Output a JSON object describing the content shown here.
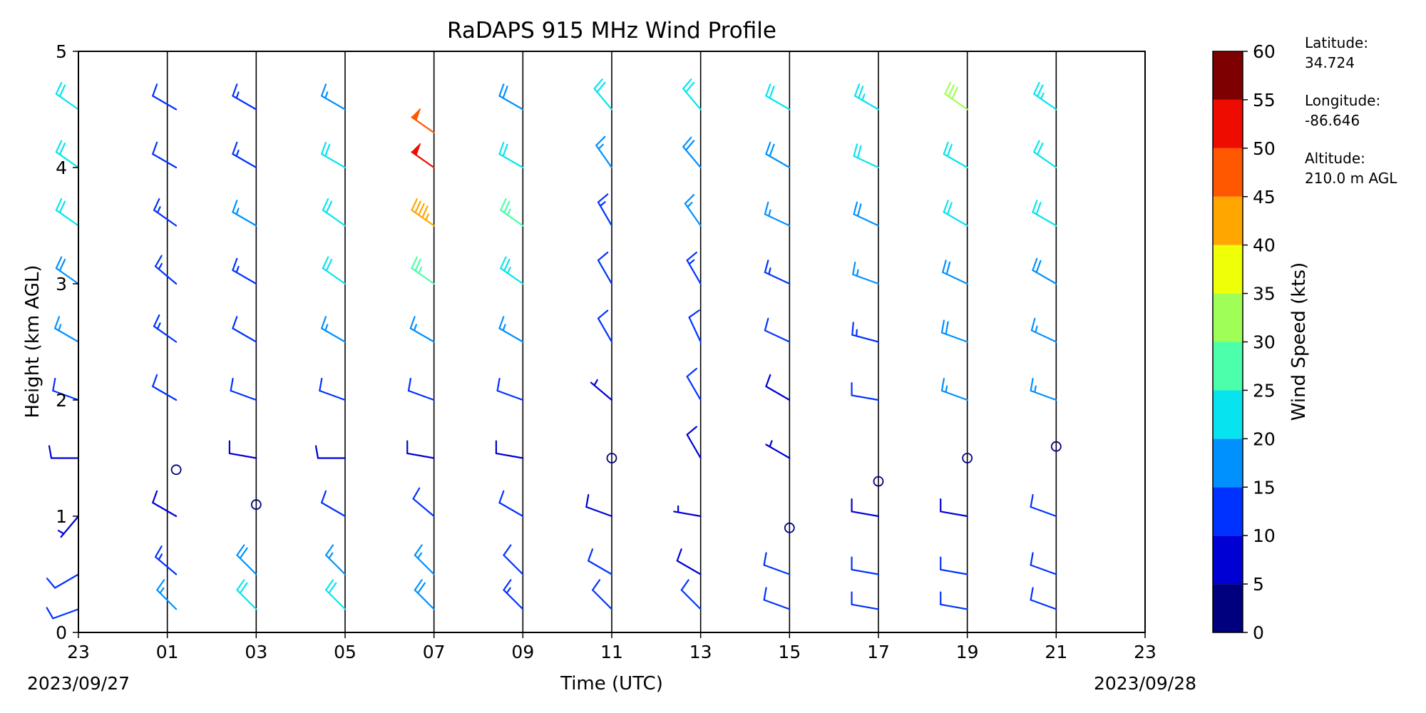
{
  "chart_data": {
    "type": "wind_barb_profile",
    "title": "RaDAPS 915 MHz Wind Profile",
    "xlabel": "Time (UTC)",
    "ylabel": "Height (km AGL)",
    "x_ticks": [
      "23",
      "01",
      "03",
      "05",
      "07",
      "09",
      "11",
      "13",
      "15",
      "17",
      "19",
      "21",
      "23"
    ],
    "x_range_hours": [
      0,
      24
    ],
    "y_ticks": [
      "0",
      "1",
      "2",
      "3",
      "4",
      "5"
    ],
    "ylim": [
      0,
      5
    ],
    "start_date_label": "2023/09/27",
    "end_date_label": "2023/09/28",
    "grid": "vertical lines every 2 hours",
    "colorbar": {
      "label": "Wind Speed (kts)",
      "ticks": [
        "0",
        "5",
        "10",
        "15",
        "20",
        "25",
        "30",
        "35",
        "40",
        "45",
        "50",
        "55",
        "60"
      ],
      "bins": [
        {
          "range": [
            0,
            5
          ],
          "color": "#00007f"
        },
        {
          "range": [
            5,
            10
          ],
          "color": "#0000d5"
        },
        {
          "range": [
            10,
            15
          ],
          "color": "#0032ff"
        },
        {
          "range": [
            15,
            20
          ],
          "color": "#0091ff"
        },
        {
          "range": [
            20,
            25
          ],
          "color": "#08e4ef"
        },
        {
          "range": [
            25,
            30
          ],
          "color": "#4cffaa"
        },
        {
          "range": [
            30,
            35
          ],
          "color": "#a0ff56"
        },
        {
          "range": [
            35,
            40
          ],
          "color": "#eeff08"
        },
        {
          "range": [
            40,
            45
          ],
          "color": "#ffa700"
        },
        {
          "range": [
            45,
            50
          ],
          "color": "#ff5800"
        },
        {
          "range": [
            50,
            55
          ],
          "color": "#ee0b00"
        },
        {
          "range": [
            55,
            60
          ],
          "color": "#7f0000"
        }
      ]
    },
    "site": {
      "latitude_label": "Latitude:",
      "latitude_value": "34.724",
      "longitude_label": "Longitude:",
      "longitude_value": "-86.646",
      "altitude_label": "Altitude:",
      "altitude_value": "210.0 m AGL"
    },
    "profiles": [
      {
        "time_h": 0.0,
        "levels": [
          {
            "h": 0.2,
            "spd": 12,
            "dir": 250
          },
          {
            "h": 0.5,
            "spd": 10,
            "dir": 240
          },
          {
            "h": 1.0,
            "spd": 6,
            "dir": 220
          },
          {
            "h": 1.5,
            "spd": 8,
            "dir": 270
          },
          {
            "h": 2.0,
            "spd": 10,
            "dir": 290
          },
          {
            "h": 2.5,
            "spd": 16,
            "dir": 300
          },
          {
            "h": 3.0,
            "spd": 19,
            "dir": 305
          },
          {
            "h": 3.5,
            "spd": 21,
            "dir": 305
          },
          {
            "h": 4.0,
            "spd": 22,
            "dir": 305
          },
          {
            "h": 4.5,
            "spd": 20,
            "dir": 305
          }
        ]
      },
      {
        "time_h": 2.2,
        "levels": [
          {
            "h": 0.2,
            "spd": 16,
            "dir": 315
          },
          {
            "h": 0.5,
            "spd": 14,
            "dir": 310
          },
          {
            "h": 1.0,
            "spd": 8,
            "dir": 300
          },
          {
            "h": 1.4,
            "spd": 0,
            "dir": 0
          },
          {
            "h": 2.0,
            "spd": 10,
            "dir": 300
          },
          {
            "h": 2.5,
            "spd": 13,
            "dir": 305
          },
          {
            "h": 3.0,
            "spd": 14,
            "dir": 310
          },
          {
            "h": 3.5,
            "spd": 14,
            "dir": 305
          },
          {
            "h": 4.0,
            "spd": 12,
            "dir": 300
          },
          {
            "h": 4.5,
            "spd": 12,
            "dir": 300
          }
        ]
      },
      {
        "time_h": 4.0,
        "levels": [
          {
            "h": 0.2,
            "spd": 22,
            "dir": 315
          },
          {
            "h": 0.5,
            "spd": 18,
            "dir": 315
          },
          {
            "h": 1.1,
            "spd": 0,
            "dir": 0
          },
          {
            "h": 1.5,
            "spd": 8,
            "dir": 280
          },
          {
            "h": 2.0,
            "spd": 10,
            "dir": 290
          },
          {
            "h": 2.5,
            "spd": 12,
            "dir": 300
          },
          {
            "h": 3.0,
            "spd": 14,
            "dir": 300
          },
          {
            "h": 3.5,
            "spd": 15,
            "dir": 300
          },
          {
            "h": 4.0,
            "spd": 14,
            "dir": 300
          },
          {
            "h": 4.5,
            "spd": 14,
            "dir": 300
          }
        ]
      },
      {
        "time_h": 6.0,
        "levels": [
          {
            "h": 0.2,
            "spd": 21,
            "dir": 315
          },
          {
            "h": 0.5,
            "spd": 16,
            "dir": 315
          },
          {
            "h": 1.0,
            "spd": 10,
            "dir": 300
          },
          {
            "h": 1.5,
            "spd": 8,
            "dir": 270
          },
          {
            "h": 2.0,
            "spd": 11,
            "dir": 290
          },
          {
            "h": 2.5,
            "spd": 16,
            "dir": 300
          },
          {
            "h": 3.0,
            "spd": 20,
            "dir": 305
          },
          {
            "h": 3.5,
            "spd": 20,
            "dir": 305
          },
          {
            "h": 4.0,
            "spd": 21,
            "dir": 300
          },
          {
            "h": 4.5,
            "spd": 17,
            "dir": 300
          }
        ]
      },
      {
        "time_h": 8.0,
        "levels": [
          {
            "h": 0.2,
            "spd": 19,
            "dir": 315
          },
          {
            "h": 0.5,
            "spd": 15,
            "dir": 315
          },
          {
            "h": 1.0,
            "spd": 12,
            "dir": 310
          },
          {
            "h": 1.5,
            "spd": 8,
            "dir": 280
          },
          {
            "h": 2.0,
            "spd": 10,
            "dir": 290
          },
          {
            "h": 2.5,
            "spd": 16,
            "dir": 300
          },
          {
            "h": 3.0,
            "spd": 26,
            "dir": 305
          },
          {
            "h": 3.5,
            "spd": 43,
            "dir": 305
          },
          {
            "h": 4.0,
            "spd": 52,
            "dir": 305
          },
          {
            "h": 4.3,
            "spd": 48,
            "dir": 305
          }
        ]
      },
      {
        "time_h": 10.0,
        "levels": [
          {
            "h": 0.2,
            "spd": 14,
            "dir": 315
          },
          {
            "h": 0.5,
            "spd": 12,
            "dir": 315
          },
          {
            "h": 1.0,
            "spd": 10,
            "dir": 300
          },
          {
            "h": 1.5,
            "spd": 8,
            "dir": 280
          },
          {
            "h": 2.0,
            "spd": 10,
            "dir": 290
          },
          {
            "h": 2.5,
            "spd": 16,
            "dir": 300
          },
          {
            "h": 3.0,
            "spd": 24,
            "dir": 305
          },
          {
            "h": 3.5,
            "spd": 27,
            "dir": 305
          },
          {
            "h": 4.0,
            "spd": 22,
            "dir": 300
          },
          {
            "h": 4.5,
            "spd": 18,
            "dir": 300
          }
        ]
      },
      {
        "time_h": 12.0,
        "levels": [
          {
            "h": 0.2,
            "spd": 12,
            "dir": 315
          },
          {
            "h": 0.5,
            "spd": 11,
            "dir": 300
          },
          {
            "h": 1.0,
            "spd": 9,
            "dir": 290
          },
          {
            "h": 1.5,
            "spd": 0,
            "dir": 0
          },
          {
            "h": 2.0,
            "spd": 6,
            "dir": 310
          },
          {
            "h": 2.5,
            "spd": 10,
            "dir": 330
          },
          {
            "h": 3.0,
            "spd": 12,
            "dir": 330
          },
          {
            "h": 3.5,
            "spd": 14,
            "dir": 330
          },
          {
            "h": 4.0,
            "spd": 16,
            "dir": 325
          },
          {
            "h": 4.5,
            "spd": 22,
            "dir": 320
          }
        ]
      },
      {
        "time_h": 14.0,
        "levels": [
          {
            "h": 0.2,
            "spd": 10,
            "dir": 315
          },
          {
            "h": 0.5,
            "spd": 9,
            "dir": 300
          },
          {
            "h": 1.0,
            "spd": 7,
            "dir": 280
          },
          {
            "h": 1.5,
            "spd": 8,
            "dir": 330
          },
          {
            "h": 2.0,
            "spd": 10,
            "dir": 330
          },
          {
            "h": 2.5,
            "spd": 12,
            "dir": 335
          },
          {
            "h": 3.0,
            "spd": 14,
            "dir": 330
          },
          {
            "h": 3.5,
            "spd": 16,
            "dir": 325
          },
          {
            "h": 4.0,
            "spd": 18,
            "dir": 320
          },
          {
            "h": 4.5,
            "spd": 20,
            "dir": 320
          }
        ]
      },
      {
        "time_h": 16.0,
        "levels": [
          {
            "h": 0.2,
            "spd": 11,
            "dir": 290
          },
          {
            "h": 0.5,
            "spd": 10,
            "dir": 290
          },
          {
            "h": 0.9,
            "spd": 0,
            "dir": 0
          },
          {
            "h": 1.5,
            "spd": 6,
            "dir": 300
          },
          {
            "h": 2.0,
            "spd": 9,
            "dir": 300
          },
          {
            "h": 2.5,
            "spd": 12,
            "dir": 295
          },
          {
            "h": 3.0,
            "spd": 14,
            "dir": 295
          },
          {
            "h": 3.5,
            "spd": 16,
            "dir": 295
          },
          {
            "h": 4.0,
            "spd": 18,
            "dir": 300
          },
          {
            "h": 4.5,
            "spd": 20,
            "dir": 300
          }
        ]
      },
      {
        "time_h": 18.0,
        "levels": [
          {
            "h": 0.2,
            "spd": 12,
            "dir": 280
          },
          {
            "h": 0.5,
            "spd": 10,
            "dir": 280
          },
          {
            "h": 1.0,
            "spd": 9,
            "dir": 280
          },
          {
            "h": 1.3,
            "spd": 0,
            "dir": 0
          },
          {
            "h": 2.0,
            "spd": 10,
            "dir": 280
          },
          {
            "h": 2.5,
            "spd": 13,
            "dir": 285
          },
          {
            "h": 3.0,
            "spd": 16,
            "dir": 290
          },
          {
            "h": 3.5,
            "spd": 18,
            "dir": 295
          },
          {
            "h": 4.0,
            "spd": 20,
            "dir": 295
          },
          {
            "h": 4.5,
            "spd": 24,
            "dir": 300
          }
        ]
      },
      {
        "time_h": 20.0,
        "levels": [
          {
            "h": 0.2,
            "spd": 10,
            "dir": 280
          },
          {
            "h": 0.5,
            "spd": 10,
            "dir": 280
          },
          {
            "h": 1.0,
            "spd": 9,
            "dir": 280
          },
          {
            "h": 1.5,
            "spd": 0,
            "dir": 0
          },
          {
            "h": 2.0,
            "spd": 16,
            "dir": 290
          },
          {
            "h": 2.5,
            "spd": 18,
            "dir": 290
          },
          {
            "h": 3.0,
            "spd": 19,
            "dir": 295
          },
          {
            "h": 3.5,
            "spd": 20,
            "dir": 300
          },
          {
            "h": 4.0,
            "spd": 22,
            "dir": 300
          },
          {
            "h": 4.5,
            "spd": 30,
            "dir": 305
          }
        ]
      },
      {
        "time_h": 22.0,
        "levels": [
          {
            "h": 0.2,
            "spd": 12,
            "dir": 290
          },
          {
            "h": 0.5,
            "spd": 11,
            "dir": 290
          },
          {
            "h": 1.0,
            "spd": 10,
            "dir": 290
          },
          {
            "h": 1.6,
            "spd": 0,
            "dir": 0
          },
          {
            "h": 2.0,
            "spd": 15,
            "dir": 290
          },
          {
            "h": 2.5,
            "spd": 17,
            "dir": 295
          },
          {
            "h": 3.0,
            "spd": 19,
            "dir": 300
          },
          {
            "h": 3.5,
            "spd": 20,
            "dir": 300
          },
          {
            "h": 4.0,
            "spd": 21,
            "dir": 305
          },
          {
            "h": 4.5,
            "spd": 24,
            "dir": 305
          }
        ]
      }
    ]
  }
}
